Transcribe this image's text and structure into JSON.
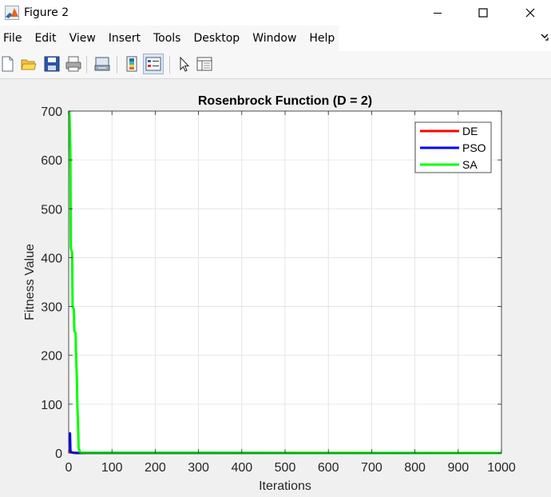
{
  "window": {
    "title": "Figure 2",
    "app_icon": "matlab-icon",
    "controls": [
      "minimize-icon",
      "maximize-icon",
      "close-icon"
    ]
  },
  "menu": {
    "items": [
      "File",
      "Edit",
      "View",
      "Insert",
      "Tools",
      "Desktop",
      "Window",
      "Help"
    ],
    "overflow_icon": "chevron-arrow-icon"
  },
  "toolbar": {
    "buttons": [
      "new-figure-icon",
      "open-file-icon",
      "save-icon",
      "print-icon",
      "link-plot-icon",
      "insert-colorbar-icon",
      "insert-legend-icon",
      "edit-plot-icon",
      "property-inspector-icon"
    ]
  },
  "chart_data": {
    "type": "line",
    "title": "Rosenbrock Function (D = 2)",
    "xlabel": "Iterations",
    "ylabel": "Fitness Value",
    "xlim": [
      0,
      1000
    ],
    "ylim": [
      0,
      700
    ],
    "xticks": [
      "0",
      "100",
      "200",
      "300",
      "400",
      "500",
      "600",
      "700",
      "800",
      "900",
      "1000"
    ],
    "yticks": [
      "0",
      "100",
      "200",
      "300",
      "400",
      "500",
      "600",
      "700"
    ],
    "grid": true,
    "legend_position": "top-right",
    "series": [
      {
        "name": "DE",
        "color": "#ff0000",
        "x": [
          1,
          3,
          6,
          10,
          20,
          1000
        ],
        "y": [
          5,
          3,
          1.5,
          0.8,
          0.3,
          0
        ]
      },
      {
        "name": "PSO",
        "color": "#0000ff",
        "x": [
          1,
          3,
          4,
          6,
          8,
          12,
          20,
          1000
        ],
        "y": [
          40,
          40,
          5,
          2,
          1,
          0.5,
          0.2,
          0
        ]
      },
      {
        "name": "SA",
        "color": "#00ff00",
        "x": [
          1,
          2,
          4,
          5,
          8,
          9,
          12,
          13,
          16,
          17,
          19,
          20,
          22,
          23,
          27,
          40,
          1000
        ],
        "y": [
          700,
          690,
          610,
          420,
          410,
          300,
          295,
          250,
          245,
          200,
          150,
          100,
          50,
          10,
          1,
          0.5,
          0
        ]
      }
    ]
  }
}
